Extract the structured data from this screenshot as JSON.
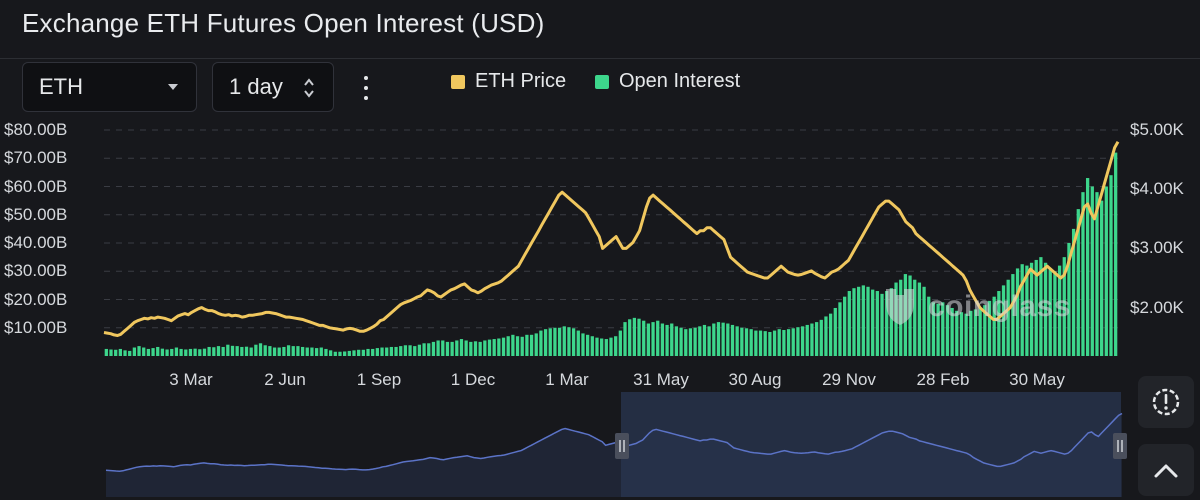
{
  "title": "Exchange ETH Futures Open Interest (USD)",
  "controls": {
    "asset": "ETH",
    "interval": "1 day"
  },
  "icons": {
    "asset_caret": "chevron-down-icon",
    "interval_updown": "up-down-icon",
    "more": "more-vertical-icon",
    "screenshot": "alert-gear-icon",
    "scroll_top": "chevron-up-icon",
    "watermark": "coinglass-logo"
  },
  "colors": {
    "price": "#f0c75e",
    "open_interest": "#3dd68c",
    "navigator_line": "#5b73c7",
    "navigator_fill": "#2a3550"
  },
  "watermark_text": "coinglass",
  "chart_data": {
    "type": "bar",
    "x_ticks": [
      "3 Mar",
      "2 Jun",
      "1 Sep",
      "1 Dec",
      "1 Mar",
      "31 May",
      "30 Aug",
      "29 Nov",
      "28 Feb",
      "30 May"
    ],
    "y_left_ticks": [
      "$80.00B",
      "$70.00B",
      "$60.00B",
      "$50.00B",
      "$40.00B",
      "$30.00B",
      "$20.00B",
      "$10.00B"
    ],
    "y_right_ticks": [
      "$5.00K",
      "$4.00K",
      "$3.00K",
      "$2.00K"
    ],
    "y_left_range": [
      0,
      80
    ],
    "y_right_range": [
      1200,
      5000
    ],
    "legend": {
      "position": "top",
      "items": [
        "ETH Price",
        "Open Interest"
      ]
    },
    "grid": "horizontal-dashed",
    "series": [
      {
        "name": "Open Interest",
        "type": "bar",
        "axis": "left",
        "values": [
          2.5,
          2.3,
          2.2,
          2.5,
          2.0,
          1.8,
          3.0,
          3.5,
          3.0,
          2.5,
          2.8,
          3.2,
          2.6,
          2.3,
          2.5,
          3.0,
          2.5,
          2.3,
          2.5,
          2.6,
          2.4,
          2.6,
          3.2,
          3.1,
          3.5,
          3.2,
          4.0,
          3.6,
          3.5,
          3.2,
          3.3,
          3.0,
          4.0,
          4.5,
          3.8,
          3.5,
          3.0,
          3.0,
          3.2,
          3.8,
          3.5,
          3.5,
          3.2,
          3.0,
          3.0,
          2.8,
          3.0,
          2.5,
          2.0,
          1.5,
          1.5,
          1.6,
          1.8,
          2.0,
          2.2,
          2.2,
          2.5,
          2.5,
          2.8,
          3.0,
          3.0,
          3.2,
          3.2,
          3.5,
          3.8,
          3.8,
          3.5,
          4.0,
          4.5,
          4.5,
          5.0,
          5.5,
          5.5,
          5.0,
          5.0,
          5.5,
          6.0,
          5.5,
          5.0,
          5.2,
          5.0,
          5.5,
          5.8,
          6.0,
          6.2,
          6.5,
          7.0,
          7.5,
          7.0,
          6.8,
          7.5,
          7.5,
          8.0,
          9.0,
          9.5,
          9.8,
          10.0,
          10.0,
          10.5,
          10.2,
          9.8,
          9.0,
          8.0,
          7.5,
          7.0,
          6.5,
          6.2,
          6.0,
          6.5,
          7.0,
          9.0,
          12.0,
          13.0,
          13.5,
          13.2,
          12.5,
          11.5,
          12.0,
          12.5,
          11.5,
          11.0,
          11.5,
          10.5,
          10.0,
          9.5,
          9.8,
          10.0,
          10.5,
          11.0,
          10.5,
          11.5,
          12.0,
          11.8,
          11.5,
          11.0,
          10.5,
          10.0,
          9.8,
          9.5,
          9.0,
          9.0,
          8.8,
          8.5,
          9.0,
          9.5,
          9.2,
          9.5,
          9.8,
          10.2,
          10.5,
          11.0,
          11.5,
          12.0,
          12.8,
          14.0,
          15.0,
          17.0,
          19.0,
          21.0,
          23.0,
          24.0,
          24.5,
          25.0,
          24.5,
          23.5,
          23.0,
          22.0,
          23.0,
          24.0,
          26.0,
          27.0,
          29.0,
          28.5,
          27.0,
          26.0,
          24.5,
          21.0,
          19.0,
          18.5,
          19.0,
          18.0,
          17.0,
          16.0,
          15.5,
          15.0,
          16.0,
          16.5,
          17.0,
          18.0,
          19.5,
          21.0,
          23.0,
          25.0,
          27.0,
          29.0,
          31.0,
          32.5,
          32.0,
          33.0,
          34.0,
          35.0,
          33.0,
          31.0,
          30.0,
          32.0,
          35.0,
          40.0,
          45.0,
          52.0,
          58.0,
          63.0,
          60.0,
          58.0,
          55.0,
          60.0,
          64.0,
          72.0
        ]
      },
      {
        "name": "ETH Price",
        "type": "line",
        "axis": "right",
        "values": [
          1580,
          1570,
          1560,
          1540,
          1530,
          1550,
          1600,
          1650,
          1700,
          1750,
          1780,
          1800,
          1820,
          1810,
          1830,
          1820,
          1840,
          1830,
          1820,
          1800,
          1780,
          1820,
          1860,
          1880,
          1900,
          1880,
          1920,
          1950,
          1980,
          2000,
          1970,
          1950,
          1950,
          1930,
          1900,
          1880,
          1870,
          1880,
          1860,
          1870,
          1860,
          1840,
          1850,
          1870,
          1870,
          1880,
          1890,
          1900,
          1920,
          1920,
          1910,
          1900,
          1880,
          1860,
          1840,
          1840,
          1830,
          1820,
          1810,
          1800,
          1780,
          1760,
          1740,
          1720,
          1700,
          1700,
          1680,
          1660,
          1650,
          1640,
          1630,
          1620,
          1640,
          1650,
          1640,
          1620,
          1600,
          1600,
          1620,
          1650,
          1680,
          1720,
          1780,
          1800,
          1850,
          1900,
          1950,
          2000,
          2050,
          2080,
          2100,
          2120,
          2150,
          2180,
          2200,
          2250,
          2300,
          2280,
          2250,
          2200,
          2180,
          2220,
          2260,
          2300,
          2320,
          2350,
          2380,
          2400,
          2350,
          2300,
          2280,
          2250,
          2280,
          2320,
          2350,
          2380,
          2400,
          2420,
          2450,
          2500,
          2550,
          2600,
          2650,
          2700,
          2800,
          2900,
          3000,
          3100,
          3200,
          3300,
          3400,
          3500,
          3600,
          3700,
          3800,
          3900,
          3950,
          3900,
          3850,
          3800,
          3750,
          3700,
          3650,
          3600,
          3500,
          3400,
          3300,
          3200,
          3000,
          3050,
          3100,
          3150,
          3200,
          3100,
          3000,
          3000,
          3050,
          3100,
          3200,
          3300,
          3500,
          3700,
          3850,
          3900,
          3850,
          3800,
          3750,
          3700,
          3650,
          3600,
          3550,
          3500,
          3450,
          3400,
          3350,
          3300,
          3250,
          3300,
          3300,
          3350,
          3350,
          3300,
          3250,
          3200,
          3150,
          3000,
          2850,
          2800,
          2750,
          2700,
          2650,
          2600,
          2580,
          2560,
          2540,
          2520,
          2500,
          2500,
          2550,
          2600,
          2650,
          2700,
          2650,
          2600,
          2580,
          2560,
          2550,
          2560,
          2580,
          2600,
          2620,
          2580,
          2550,
          2520,
          2500,
          2550,
          2600,
          2620,
          2650,
          2700,
          2750,
          2800,
          2900,
          3000,
          3100,
          3200,
          3300,
          3400,
          3500,
          3600,
          3700,
          3750,
          3800,
          3800,
          3750,
          3700,
          3650,
          3550,
          3450,
          3400,
          3350,
          3250,
          3200,
          3150,
          3100,
          3050,
          3000,
          2950,
          2900,
          2850,
          2800,
          2750,
          2700,
          2650,
          2600,
          2550,
          2450,
          2300,
          2200,
          2100,
          2000,
          1950,
          1900,
          1850,
          1800,
          1800,
          1850,
          1900,
          1950,
          2000,
          2100,
          2200,
          2350,
          2450,
          2550,
          2650,
          2600,
          2550,
          2600,
          2650,
          2700,
          2650,
          2600,
          2550,
          2500,
          2550,
          2700,
          2900,
          3100,
          3300,
          3500,
          3700,
          3750,
          3600,
          3500,
          3700,
          3900,
          4100,
          4300,
          4500,
          4700,
          4800
        ]
      }
    ]
  }
}
